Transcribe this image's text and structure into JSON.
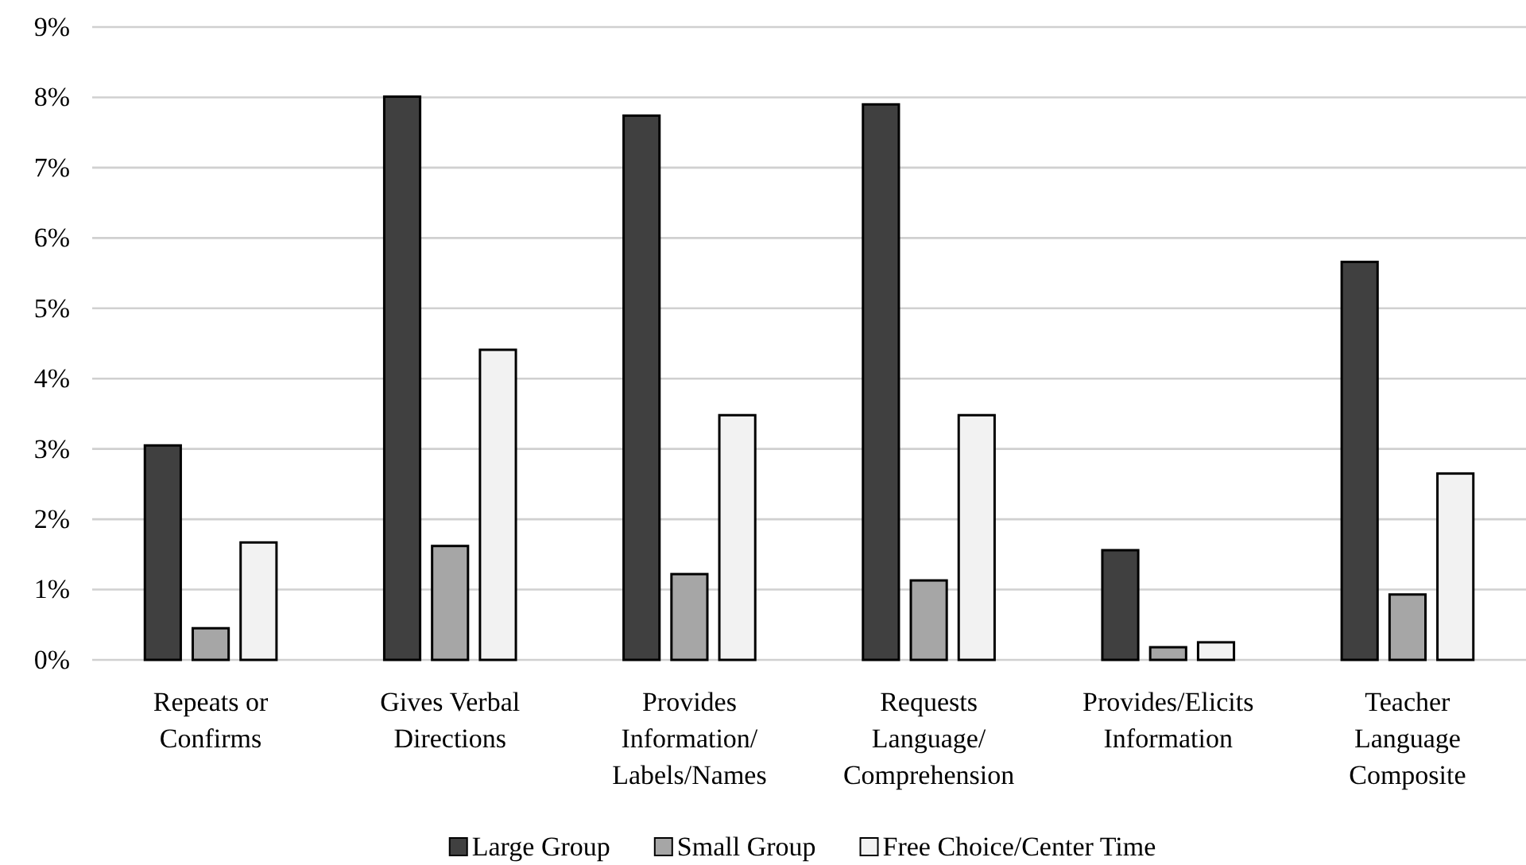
{
  "chart_data": {
    "type": "bar",
    "categories": [
      "Repeats or\nConfirms",
      "Gives Verbal\nDirections",
      "Provides\nInformation/\nLabels/Names",
      "Requests\nLanguage/\nComprehension",
      "Provides/Elicits\nInformation",
      "Teacher\nLanguage\nComposite"
    ],
    "series": [
      {
        "name": "Large Group",
        "color": "#404040",
        "values": [
          3.05,
          8.01,
          7.74,
          7.9,
          1.56,
          5.66
        ]
      },
      {
        "name": "Small Group",
        "color": "#a6a6a6",
        "values": [
          0.45,
          1.62,
          1.22,
          1.13,
          0.18,
          0.93
        ]
      },
      {
        "name": "Free Choice/Center Time",
        "color": "#f2f2f2",
        "values": [
          1.67,
          4.41,
          3.48,
          3.48,
          0.25,
          2.65
        ]
      }
    ],
    "ylim": [
      0,
      9
    ],
    "yticks": [
      {
        "value": 0,
        "label": "0%"
      },
      {
        "value": 1,
        "label": "1%"
      },
      {
        "value": 2,
        "label": "2%"
      },
      {
        "value": 3,
        "label": "3%"
      },
      {
        "value": 4,
        "label": "4%"
      },
      {
        "value": 5,
        "label": "5%"
      },
      {
        "value": 6,
        "label": "6%"
      },
      {
        "value": 7,
        "label": "7%"
      },
      {
        "value": 8,
        "label": "8%"
      },
      {
        "value": 9,
        "label": "9%"
      }
    ],
    "grid": "y",
    "legend": "bottom"
  }
}
